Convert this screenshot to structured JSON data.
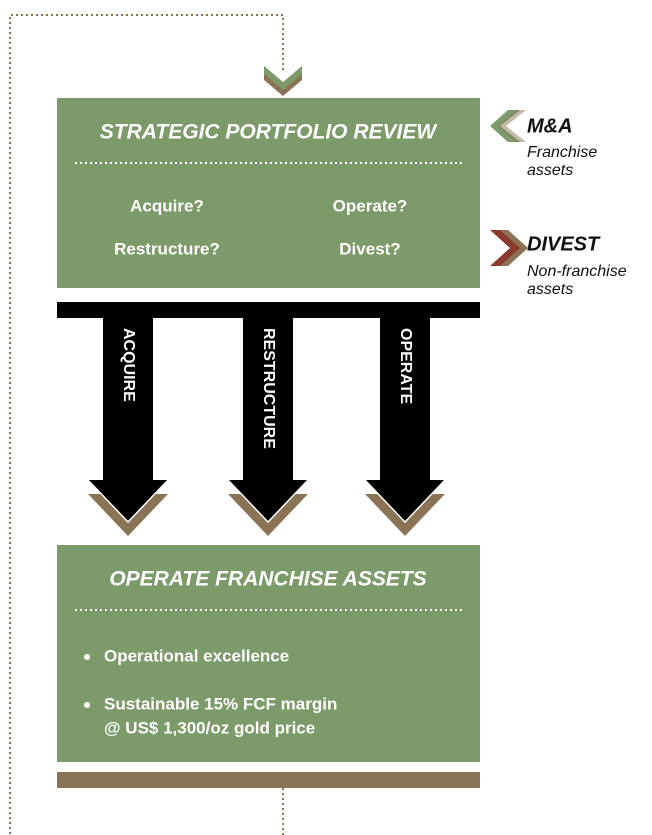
{
  "review": {
    "title": "STRATEGIC PORTFOLIO REVIEW",
    "options": [
      "Acquire?",
      "Operate?",
      "Restructure?",
      "Divest?"
    ]
  },
  "side": [
    {
      "title": "M&A",
      "lines": [
        "Franchise",
        "assets"
      ]
    },
    {
      "title": "DIVEST",
      "lines": [
        "Non-franchise",
        "assets"
      ]
    }
  ],
  "arrows": [
    "ACQUIRE",
    "RESTRUCTURE",
    "OPERATE"
  ],
  "operate": {
    "title": "OPERATE FRANCHISE ASSETS",
    "bullets": [
      [
        "Operational excellence"
      ],
      [
        "Sustainable 15% FCF margin",
        "@ US$ 1,300/oz gold price"
      ]
    ]
  }
}
